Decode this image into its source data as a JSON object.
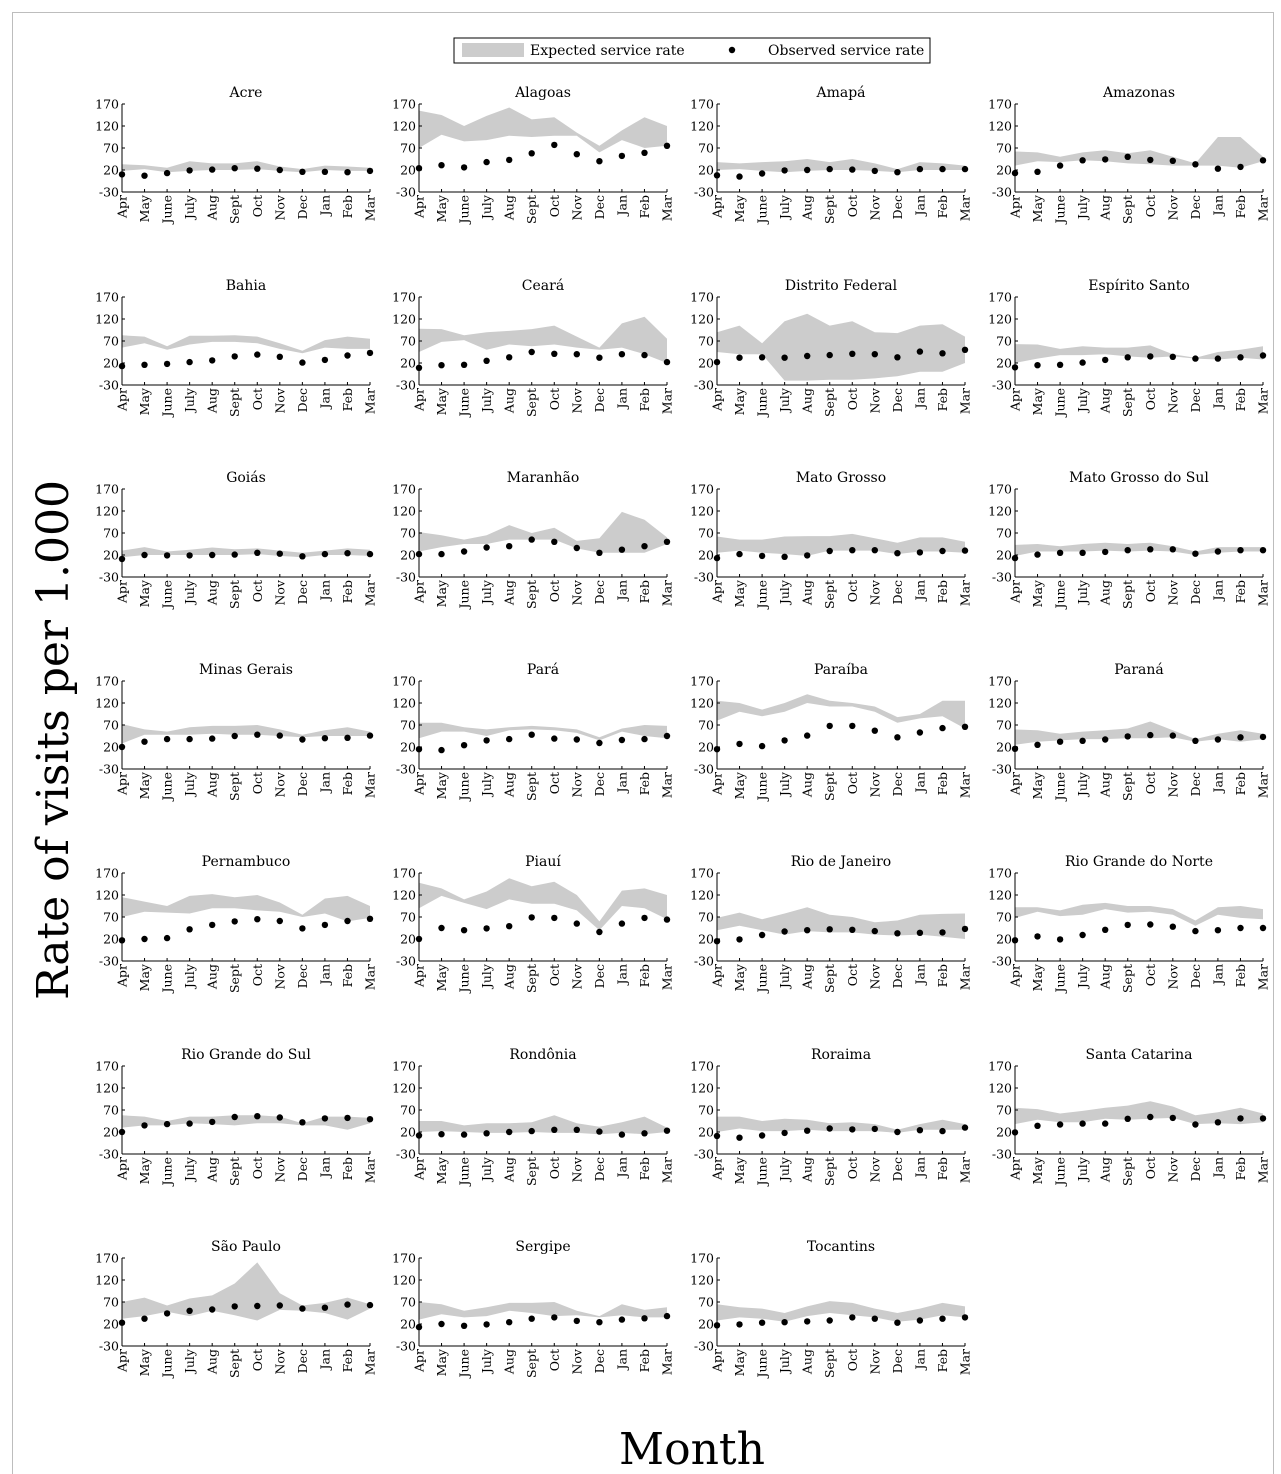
{
  "figure": {
    "ylabel": "Rate of visits per 1.000",
    "xlabel": "Month",
    "legend": {
      "expected": "Expected service rate",
      "observed": "Observed service rate"
    }
  },
  "chart_data": {
    "type": "scatter",
    "categories": [
      "Apr",
      "May",
      "June",
      "July",
      "Aug",
      "Sept",
      "Oct",
      "Nov",
      "Dec",
      "Jan",
      "Feb",
      "Mar"
    ],
    "yticks": [
      170,
      120,
      70,
      20,
      -30
    ],
    "ylim": [
      -30,
      170
    ],
    "grid": false,
    "legend_position": "top-center",
    "colors": {
      "band": "#cccccc",
      "points": "#000000"
    },
    "panels": [
      {
        "title": "Acre",
        "upper": [
          33,
          31,
          25,
          40,
          35,
          35,
          40,
          28,
          22,
          30,
          28,
          25
        ],
        "lower": [
          18,
          22,
          15,
          18,
          20,
          20,
          22,
          18,
          15,
          20,
          18,
          18
        ],
        "observed": [
          10,
          7,
          13,
          19,
          21,
          24,
          23,
          20,
          16,
          16,
          15,
          18
        ]
      },
      {
        "title": "Alagoas",
        "upper": [
          155,
          145,
          120,
          143,
          162,
          135,
          140,
          105,
          75,
          110,
          140,
          120
        ],
        "lower": [
          70,
          100,
          85,
          88,
          98,
          95,
          98,
          98,
          60,
          88,
          70,
          75
        ],
        "observed": [
          24,
          31,
          26,
          38,
          43,
          58,
          77,
          56,
          40,
          52,
          59,
          75
        ]
      },
      {
        "title": "Amapá",
        "upper": [
          38,
          35,
          38,
          40,
          45,
          38,
          45,
          35,
          22,
          38,
          35,
          30
        ],
        "lower": [
          20,
          22,
          18,
          15,
          18,
          20,
          20,
          18,
          15,
          20,
          20,
          20
        ],
        "observed": [
          8,
          5,
          12,
          19,
          20,
          22,
          21,
          18,
          15,
          22,
          22,
          22
        ]
      },
      {
        "title": "Amazonas",
        "upper": [
          62,
          60,
          50,
          60,
          65,
          58,
          65,
          50,
          35,
          95,
          95,
          50
        ],
        "lower": [
          30,
          40,
          38,
          42,
          40,
          35,
          33,
          30,
          30,
          30,
          25,
          40
        ],
        "observed": [
          13,
          16,
          30,
          42,
          44,
          50,
          43,
          41,
          33,
          23,
          27,
          42
        ]
      },
      {
        "title": "Bahia",
        "upper": [
          83,
          80,
          58,
          82,
          82,
          83,
          80,
          65,
          48,
          72,
          80,
          75
        ],
        "lower": [
          55,
          65,
          50,
          62,
          68,
          68,
          65,
          52,
          42,
          55,
          52,
          52
        ],
        "observed": [
          13,
          16,
          18,
          22,
          26,
          35,
          39,
          34,
          21,
          27,
          37,
          43
        ]
      },
      {
        "title": "Ceará",
        "upper": [
          98,
          97,
          83,
          90,
          93,
          97,
          105,
          80,
          55,
          110,
          125,
          75
        ],
        "lower": [
          45,
          68,
          72,
          50,
          62,
          58,
          62,
          55,
          50,
          55,
          40,
          20
        ],
        "observed": [
          9,
          15,
          16,
          25,
          33,
          45,
          41,
          40,
          32,
          40,
          38,
          22
        ]
      },
      {
        "title": "Distrito Federal",
        "upper": [
          90,
          105,
          65,
          115,
          132,
          105,
          115,
          90,
          88,
          105,
          108,
          80
        ],
        "lower": [
          45,
          40,
          40,
          -20,
          -20,
          -18,
          -18,
          -15,
          -10,
          0,
          0,
          20
        ],
        "observed": [
          22,
          32,
          33,
          32,
          36,
          38,
          41,
          40,
          33,
          46,
          42,
          50
        ]
      },
      {
        "title": "Espírito Santo",
        "upper": [
          63,
          62,
          52,
          58,
          55,
          55,
          60,
          40,
          32,
          45,
          50,
          58
        ],
        "lower": [
          20,
          30,
          38,
          38,
          40,
          35,
          32,
          35,
          30,
          28,
          32,
          28
        ],
        "observed": [
          10,
          15,
          16,
          21,
          27,
          33,
          35,
          34,
          30,
          30,
          33,
          37
        ]
      },
      {
        "title": "Goiás",
        "upper": [
          30,
          38,
          28,
          32,
          37,
          33,
          35,
          30,
          25,
          30,
          35,
          32
        ],
        "lower": [
          15,
          20,
          20,
          20,
          20,
          20,
          22,
          18,
          15,
          20,
          20,
          18
        ],
        "observed": [
          11,
          20,
          19,
          19,
          20,
          21,
          25,
          23,
          17,
          22,
          24,
          22
        ]
      },
      {
        "title": "Maranhão",
        "upper": [
          72,
          65,
          55,
          65,
          88,
          70,
          82,
          52,
          58,
          118,
          100,
          60
        ],
        "lower": [
          28,
          38,
          45,
          45,
          55,
          55,
          55,
          35,
          25,
          25,
          25,
          45
        ],
        "observed": [
          22,
          22,
          28,
          37,
          40,
          55,
          50,
          36,
          25,
          32,
          40,
          50
        ]
      },
      {
        "title": "Mato Grosso",
        "upper": [
          62,
          55,
          55,
          62,
          63,
          63,
          68,
          58,
          48,
          60,
          60,
          50
        ],
        "lower": [
          25,
          30,
          25,
          22,
          18,
          30,
          30,
          30,
          22,
          28,
          28,
          25
        ],
        "observed": [
          13,
          22,
          18,
          16,
          19,
          29,
          31,
          31,
          24,
          26,
          29,
          30
        ]
      },
      {
        "title": "Mato Grosso do Sul",
        "upper": [
          43,
          45,
          40,
          45,
          48,
          45,
          48,
          40,
          28,
          38,
          38,
          38
        ],
        "lower": [
          18,
          28,
          28,
          28,
          30,
          28,
          30,
          28,
          20,
          25,
          28,
          28
        ],
        "observed": [
          13,
          21,
          25,
          25,
          27,
          31,
          33,
          33,
          23,
          28,
          31,
          31
        ]
      },
      {
        "title": "Minas Gerais",
        "upper": [
          72,
          60,
          55,
          65,
          68,
          68,
          70,
          60,
          48,
          58,
          65,
          55
        ],
        "lower": [
          28,
          48,
          48,
          48,
          50,
          48,
          48,
          45,
          42,
          45,
          45,
          45
        ],
        "observed": [
          20,
          32,
          38,
          38,
          39,
          45,
          48,
          46,
          37,
          40,
          41,
          46
        ]
      },
      {
        "title": "Pará",
        "upper": [
          75,
          75,
          65,
          60,
          65,
          68,
          65,
          60,
          42,
          62,
          70,
          68
        ],
        "lower": [
          40,
          55,
          55,
          45,
          58,
          60,
          58,
          52,
          35,
          55,
          45,
          40
        ],
        "observed": [
          15,
          13,
          24,
          35,
          38,
          48,
          39,
          37,
          29,
          36,
          38,
          45
        ]
      },
      {
        "title": "Paraíba",
        "upper": [
          125,
          120,
          105,
          120,
          140,
          125,
          120,
          112,
          88,
          95,
          125,
          125
        ],
        "lower": [
          80,
          100,
          90,
          100,
          120,
          112,
          112,
          100,
          75,
          85,
          90,
          62
        ],
        "observed": [
          15,
          27,
          22,
          35,
          46,
          68,
          68,
          57,
          42,
          53,
          63,
          66
        ]
      },
      {
        "title": "Paraná",
        "upper": [
          60,
          58,
          50,
          55,
          58,
          62,
          78,
          58,
          38,
          50,
          58,
          50
        ],
        "lower": [
          25,
          32,
          35,
          38,
          38,
          40,
          40,
          42,
          32,
          38,
          32,
          38
        ],
        "observed": [
          16,
          25,
          32,
          34,
          37,
          44,
          47,
          46,
          34,
          37,
          42,
          43
        ]
      },
      {
        "title": "Pernambuco",
        "upper": [
          115,
          105,
          95,
          118,
          122,
          115,
          120,
          103,
          75,
          112,
          118,
          95
        ],
        "lower": [
          70,
          82,
          80,
          78,
          90,
          90,
          85,
          82,
          70,
          78,
          60,
          68
        ],
        "observed": [
          17,
          20,
          22,
          42,
          52,
          60,
          65,
          61,
          44,
          52,
          61,
          66
        ]
      },
      {
        "title": "Piauí",
        "upper": [
          148,
          135,
          110,
          128,
          158,
          140,
          150,
          120,
          60,
          130,
          135,
          120
        ],
        "lower": [
          90,
          118,
          102,
          88,
          110,
          100,
          100,
          85,
          40,
          95,
          90,
          65
        ],
        "observed": [
          20,
          45,
          40,
          44,
          49,
          69,
          68,
          55,
          36,
          55,
          68,
          64
        ]
      },
      {
        "title": "Rio de Janeiro",
        "upper": [
          68,
          80,
          65,
          78,
          92,
          75,
          70,
          58,
          62,
          75,
          77,
          78
        ],
        "lower": [
          40,
          50,
          40,
          30,
          38,
          35,
          35,
          30,
          28,
          30,
          25,
          20
        ],
        "observed": [
          15,
          19,
          29,
          37,
          40,
          42,
          41,
          38,
          33,
          34,
          35,
          43
        ]
      },
      {
        "title": "Rio Grande do Norte",
        "upper": [
          92,
          92,
          85,
          98,
          102,
          95,
          95,
          88,
          62,
          92,
          95,
          88
        ],
        "lower": [
          68,
          82,
          72,
          75,
          88,
          80,
          82,
          75,
          50,
          75,
          68,
          65
        ],
        "observed": [
          17,
          26,
          19,
          29,
          41,
          52,
          53,
          48,
          38,
          40,
          45,
          45
        ]
      },
      {
        "title": "Rio Grande do Sul",
        "upper": [
          58,
          55,
          45,
          55,
          55,
          58,
          58,
          55,
          40,
          55,
          55,
          52
        ],
        "lower": [
          30,
          35,
          35,
          40,
          38,
          35,
          40,
          40,
          35,
          35,
          25,
          40
        ],
        "observed": [
          20,
          35,
          38,
          39,
          43,
          54,
          56,
          53,
          42,
          51,
          52,
          49
        ]
      },
      {
        "title": "Rondônia",
        "upper": [
          45,
          45,
          35,
          40,
          40,
          42,
          58,
          40,
          32,
          42,
          55,
          30
        ],
        "lower": [
          20,
          22,
          20,
          18,
          18,
          20,
          18,
          18,
          15,
          18,
          15,
          20
        ],
        "observed": [
          12,
          15,
          14,
          17,
          20,
          22,
          25,
          25,
          21,
          14,
          17,
          23
        ]
      },
      {
        "title": "Roraima",
        "upper": [
          55,
          55,
          45,
          50,
          48,
          40,
          42,
          38,
          25,
          38,
          48,
          38
        ],
        "lower": [
          20,
          28,
          22,
          22,
          25,
          22,
          22,
          22,
          18,
          25,
          25,
          25
        ],
        "observed": [
          11,
          7,
          12,
          18,
          23,
          28,
          26,
          27,
          20,
          24,
          22,
          30
        ]
      },
      {
        "title": "Santa Catarina",
        "upper": [
          75,
          72,
          62,
          68,
          75,
          80,
          90,
          78,
          58,
          65,
          75,
          62
        ],
        "lower": [
          38,
          48,
          42,
          42,
          50,
          48,
          50,
          52,
          38,
          40,
          38,
          42
        ],
        "observed": [
          19,
          34,
          37,
          39,
          39,
          50,
          54,
          52,
          37,
          42,
          51,
          51
        ]
      },
      {
        "title": "São Paulo",
        "upper": [
          70,
          80,
          62,
          78,
          85,
          112,
          160,
          90,
          62,
          68,
          80,
          65
        ],
        "lower": [
          32,
          38,
          48,
          38,
          50,
          40,
          28,
          52,
          50,
          45,
          30,
          55
        ],
        "observed": [
          23,
          32,
          44,
          50,
          53,
          60,
          61,
          62,
          55,
          57,
          64,
          63
        ]
      },
      {
        "title": "Sergipe",
        "upper": [
          70,
          65,
          50,
          58,
          68,
          68,
          70,
          50,
          38,
          65,
          52,
          58
        ],
        "lower": [
          30,
          42,
          35,
          38,
          50,
          45,
          38,
          40,
          35,
          40,
          35,
          35
        ],
        "observed": [
          13,
          20,
          16,
          19,
          24,
          32,
          35,
          27,
          24,
          30,
          33,
          38
        ]
      },
      {
        "title": "Tocantins",
        "upper": [
          65,
          58,
          55,
          45,
          60,
          72,
          68,
          55,
          45,
          55,
          68,
          60
        ],
        "lower": [
          28,
          35,
          32,
          25,
          38,
          45,
          40,
          35,
          25,
          30,
          40,
          35
        ],
        "observed": [
          17,
          19,
          23,
          24,
          26,
          28,
          35,
          32,
          23,
          28,
          32,
          35
        ]
      }
    ]
  }
}
